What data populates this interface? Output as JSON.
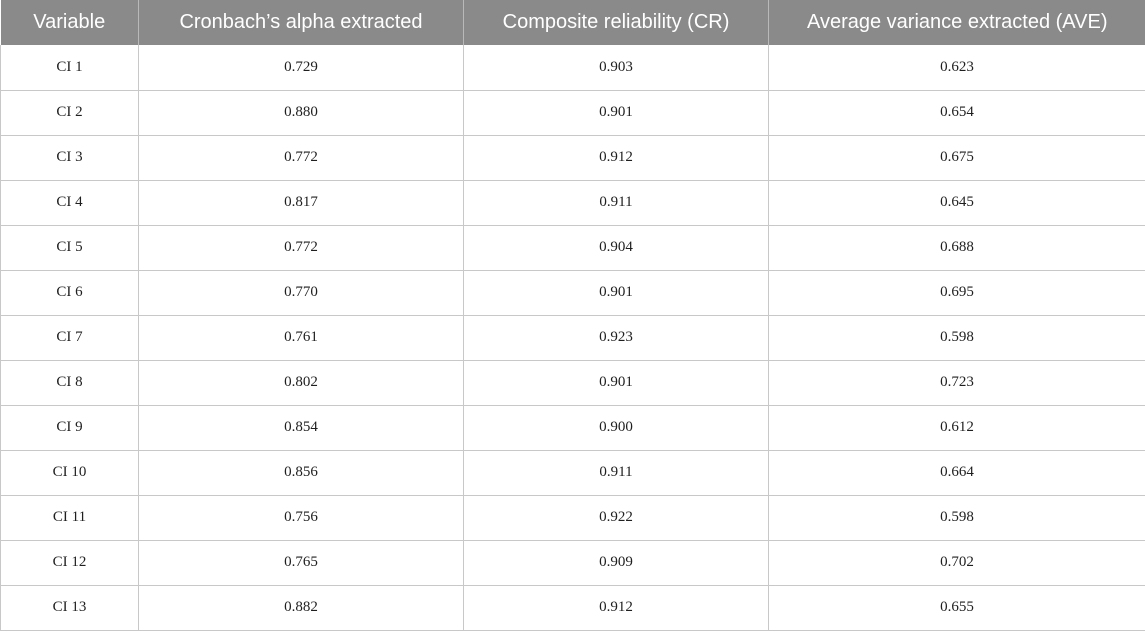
{
  "table": {
    "headers": [
      "Variable",
      "Cronbach’s alpha extracted",
      "Composite reliability (CR)",
      "Average variance extracted (AVE)"
    ],
    "rows": [
      [
        "CI 1",
        "0.729",
        "0.903",
        "0.623"
      ],
      [
        "CI 2",
        "0.880",
        "0.901",
        "0.654"
      ],
      [
        "CI 3",
        "0.772",
        "0.912",
        "0.675"
      ],
      [
        "CI 4",
        "0.817",
        "0.911",
        "0.645"
      ],
      [
        "CI 5",
        "0.772",
        "0.904",
        "0.688"
      ],
      [
        "CI 6",
        "0.770",
        "0.901",
        "0.695"
      ],
      [
        "CI 7",
        "0.761",
        "0.923",
        "0.598"
      ],
      [
        "CI 8",
        "0.802",
        "0.901",
        "0.723"
      ],
      [
        "CI 9",
        "0.854",
        "0.900",
        "0.612"
      ],
      [
        "CI 10",
        "0.856",
        "0.911",
        "0.664"
      ],
      [
        "CI 11",
        "0.756",
        "0.922",
        "0.598"
      ],
      [
        "CI 12",
        "0.765",
        "0.909",
        "0.702"
      ],
      [
        "CI 13",
        "0.882",
        "0.912",
        "0.655"
      ]
    ]
  },
  "colors": {
    "header_background": "#8a8a8a",
    "header_text": "#ffffff",
    "grid_line": "#c8c8c8"
  }
}
